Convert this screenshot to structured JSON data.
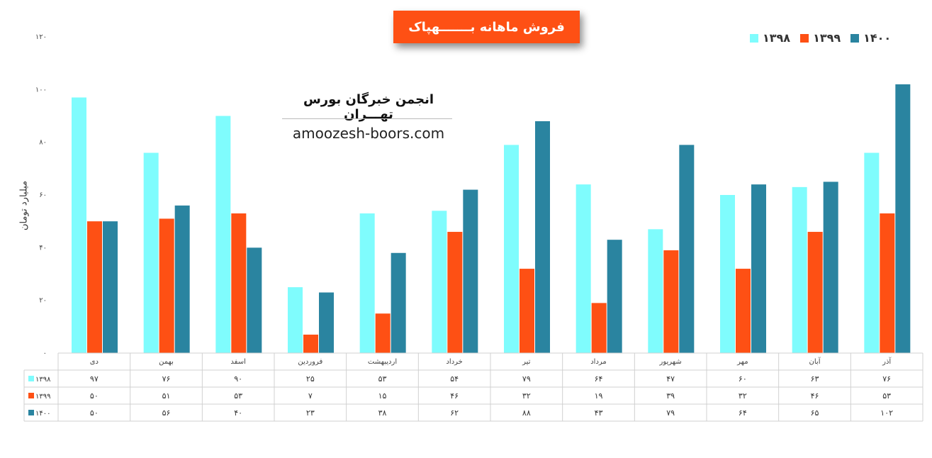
{
  "title": "فروش ماهانه بـــــــهپاک",
  "watermark": {
    "org": "انجمن خبرگان بورس تهـــران",
    "url": "amoozesh-boors.com"
  },
  "colors": {
    "1398": "#7ffcfd",
    "1399": "#fe5014",
    "1400": "#2a84a0"
  },
  "chart_data": {
    "type": "bar",
    "title": "فروش ماهانه بـــــــهپاک",
    "ylabel": "میلیارد تومان",
    "xlabel": "",
    "ylim": [
      0,
      120
    ],
    "yticks": [
      "۰",
      "۲۰",
      "۴۰",
      "۶۰",
      "۸۰",
      "۱۰۰",
      "۱۲۰"
    ],
    "legend_position": "top-right",
    "grid": false,
    "categories": [
      "دی",
      "بهمن",
      "اسفد",
      "فروردین",
      "اردیبهشت",
      "خرداد",
      "تیر",
      "مرداد",
      "شهریور",
      "مهر",
      "آبان",
      "آذر"
    ],
    "series": [
      {
        "name": "۱۳۹۸",
        "key": "1398",
        "values": [
          97,
          76,
          90,
          25,
          53,
          54,
          79,
          64,
          47,
          60,
          63,
          76
        ],
        "labels": [
          "۹۷",
          "۷۶",
          "۹۰",
          "۲۵",
          "۵۳",
          "۵۴",
          "۷۹",
          "۶۴",
          "۴۷",
          "۶۰",
          "۶۳",
          "۷۶"
        ]
      },
      {
        "name": "۱۳۹۹",
        "key": "1399",
        "values": [
          50,
          51,
          53,
          7,
          15,
          46,
          32,
          19,
          39,
          32,
          46,
          53
        ],
        "labels": [
          "۵۰",
          "۵۱",
          "۵۳",
          "۷",
          "۱۵",
          "۴۶",
          "۳۲",
          "۱۹",
          "۳۹",
          "۳۲",
          "۴۶",
          "۵۳"
        ]
      },
      {
        "name": "۱۴۰۰",
        "key": "1400",
        "values": [
          50,
          56,
          40,
          23,
          38,
          62,
          88,
          43,
          79,
          64,
          65,
          102
        ],
        "labels": [
          "۵۰",
          "۵۶",
          "۴۰",
          "۲۳",
          "۳۸",
          "۶۲",
          "۸۸",
          "۴۳",
          "۷۹",
          "۶۴",
          "۶۵",
          "۱۰۲"
        ]
      }
    ]
  }
}
